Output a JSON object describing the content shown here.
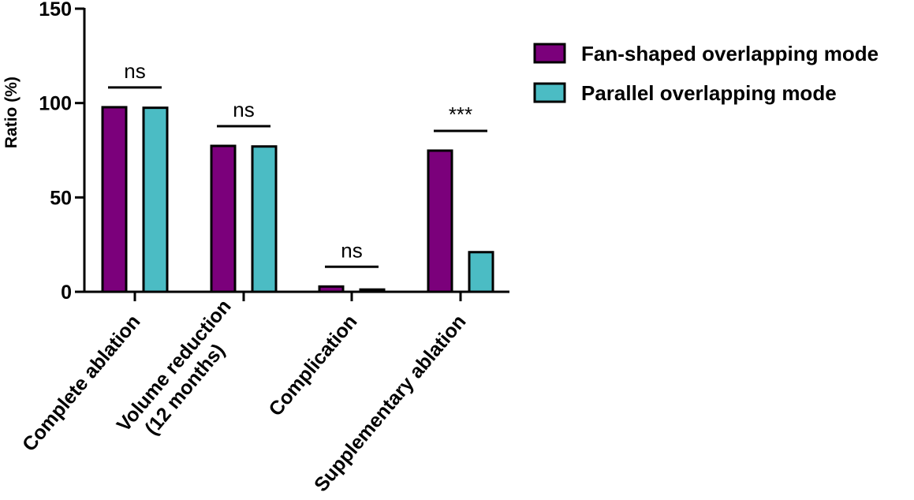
{
  "chart_data": {
    "type": "bar",
    "ylabel": "Ratio (%)",
    "ylim": [
      0,
      150
    ],
    "yticks": [
      "0",
      "50",
      "100",
      "150"
    ],
    "categories": [
      [
        "Complete ablation"
      ],
      [
        "Volume reduction",
        "(12 months)"
      ],
      [
        "Complication"
      ],
      [
        "Supplementary ablation"
      ]
    ],
    "series": [
      {
        "name": "Fan-shaped overlapping mode",
        "color": "#7b007b",
        "values": [
          97.8,
          77.3,
          2.8,
          74.8
        ]
      },
      {
        "name": "Parallel overlapping mode",
        "color": "#4bbcc4",
        "values": [
          97.5,
          77.0,
          1.2,
          21.0
        ]
      }
    ],
    "significance": [
      "ns",
      "ns",
      "ns",
      "***"
    ],
    "legend_position": "top-right"
  }
}
